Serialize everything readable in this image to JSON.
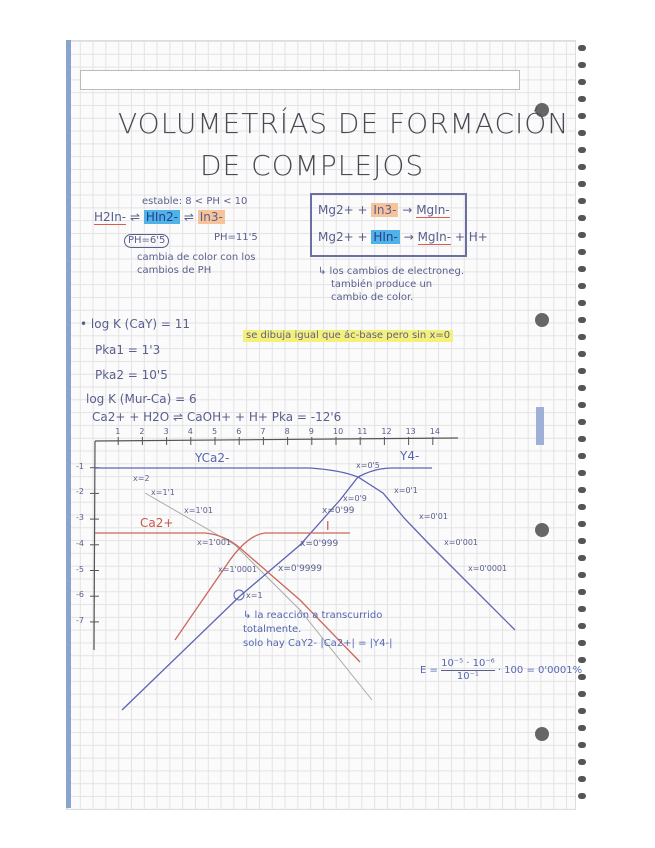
{
  "title": {
    "line1": "VOLUMETRÍAS DE FORMACIÓN",
    "line2": "DE COMPLEJOS"
  },
  "indicator": {
    "stable": "estable: 8 < PH < 10",
    "species": [
      "H2In-",
      "HIn2-",
      "In3-"
    ],
    "ph1": "PH=6'5",
    "ph2": "PH=11'5",
    "note": [
      "cambia de color con los",
      "cambios de PH"
    ]
  },
  "reactions": {
    "r1": {
      "a": "Mg2+ +",
      "b": "In3-",
      "arrow": "→",
      "c": "MgIn-"
    },
    "r2": {
      "a": "Mg2+ +",
      "b": "HIn-",
      "arrow": "→",
      "c": "MgIn-",
      "d": "+ H+"
    },
    "note": [
      "↳ los cambios de electroneg.",
      "también produce un",
      "cambio de color."
    ]
  },
  "data_lines": {
    "logk": "• log K (CaY) = 11",
    "pka1": "Pka1 = 1'3",
    "pka2": "Pka2 = 10'5",
    "logk2": "log K (Mur-Ca) = 6",
    "eq": "Ca2+ + H2O ⇌ CaOH+ + H+   Pka = -12'6",
    "highlight": "se dibuja igual que ác-base pero sin x=0"
  },
  "graph": {
    "x_ticks": [
      "1",
      "2",
      "3",
      "4",
      "5",
      "6",
      "7",
      "8",
      "9",
      "10",
      "11",
      "12",
      "13",
      "14"
    ],
    "y_ticks": [
      "-1",
      "-2",
      "-3",
      "-4",
      "-5",
      "-6",
      "-7"
    ],
    "labels": {
      "yca": "YCa2-",
      "y4": "Y4-",
      "ca": "Ca2+",
      "i": "I"
    },
    "points": [
      "x=2",
      "x=1'1",
      "x=1'01",
      "x=1'001",
      "x=1'0001",
      "x=1",
      "x=0'5",
      "x=0'9",
      "x=0'99",
      "x=0'999",
      "x=0'9999",
      "x=0'1",
      "x=0'01",
      "x=0'001",
      "x=0'0001"
    ],
    "colors": {
      "blue": "#5c64b4",
      "red": "#c9685a",
      "gray": "#9a9a9a"
    }
  },
  "conclusion": [
    "↳ la reacción a transcurrido",
    "totalmente.",
    "solo hay CaY2-  |Ca2+| = |Y4-|"
  ],
  "error": {
    "lhs": "E =",
    "num": "10⁻⁵ · 10⁻⁶",
    "den": "10⁻¹",
    "rhs": "· 100 = 0'0001%"
  }
}
